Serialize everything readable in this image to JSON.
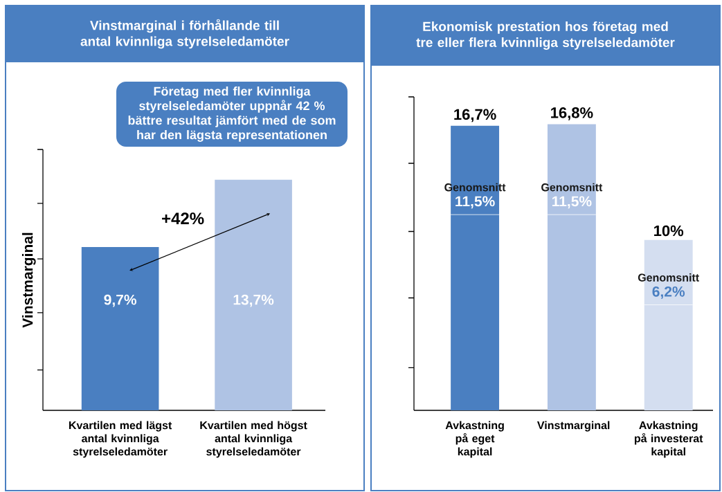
{
  "chart_data": [
    {
      "type": "bar",
      "title": "Vinstmarginal i förhållande till antal kvinnliga styrelseledamöter",
      "ylabel": "Vinstmarginal",
      "categories": [
        "Kvartilen med lägst antal kvinnliga styrelseledamöter",
        "Kvartilen med högst antal kvinnliga styrelseledamöter"
      ],
      "values": [
        9.7,
        13.7
      ],
      "colors": [
        "#4a7fc1",
        "#afc3e4"
      ],
      "value_labels": [
        "9,7%",
        "13,7%"
      ],
      "ylim": [
        0,
        15.5
      ],
      "yticks": [
        {
          "value": 2.4,
          "label": null
        },
        {
          "value": 5.8,
          "label": null
        },
        {
          "value": 9,
          "label": null
        },
        {
          "value": 12.3,
          "label": null
        },
        {
          "value": 15.5,
          "label": null
        }
      ],
      "annotations": [
        "Företag med fler kvinnliga styrelseledamöter uppnår 42 % bättre resultat jämfört med de som har den lägsta representationen",
        "+42%"
      ]
    },
    {
      "type": "bar",
      "stacked": true,
      "title": "Ekonomisk prestation hos företag med tre eller flera kvinnliga styrelseledamöter",
      "categories": [
        "Avkastning på eget kapital",
        "Vinstmarginal",
        "Avkastning på investerat kapital"
      ],
      "series": [
        {
          "name": "Genomsnitt",
          "colors": [
            "#4a7fc1",
            "#afc3e4",
            "#d4def0"
          ],
          "values": [
            11.5,
            11.5,
            6.2
          ],
          "value_labels": [
            "11,5%",
            "11,5%",
            "6,2%"
          ]
        },
        {
          "colors": [
            "#4a7fc1",
            "#afc3e4",
            "#d4def0"
          ],
          "values": [
            5.2,
            5.3,
            3.8
          ]
        }
      ],
      "totals": [
        "16,7%",
        "16,8%",
        "10%"
      ],
      "ylim": [
        0,
        18.4
      ],
      "yticks": [
        {
          "value": 2.5,
          "label": null
        },
        {
          "value": 6.6,
          "label": null
        },
        {
          "value": 10.5,
          "label": null
        },
        {
          "value": 14.5,
          "label": null
        },
        {
          "value": 18.4,
          "label": null
        }
      ]
    }
  ]
}
